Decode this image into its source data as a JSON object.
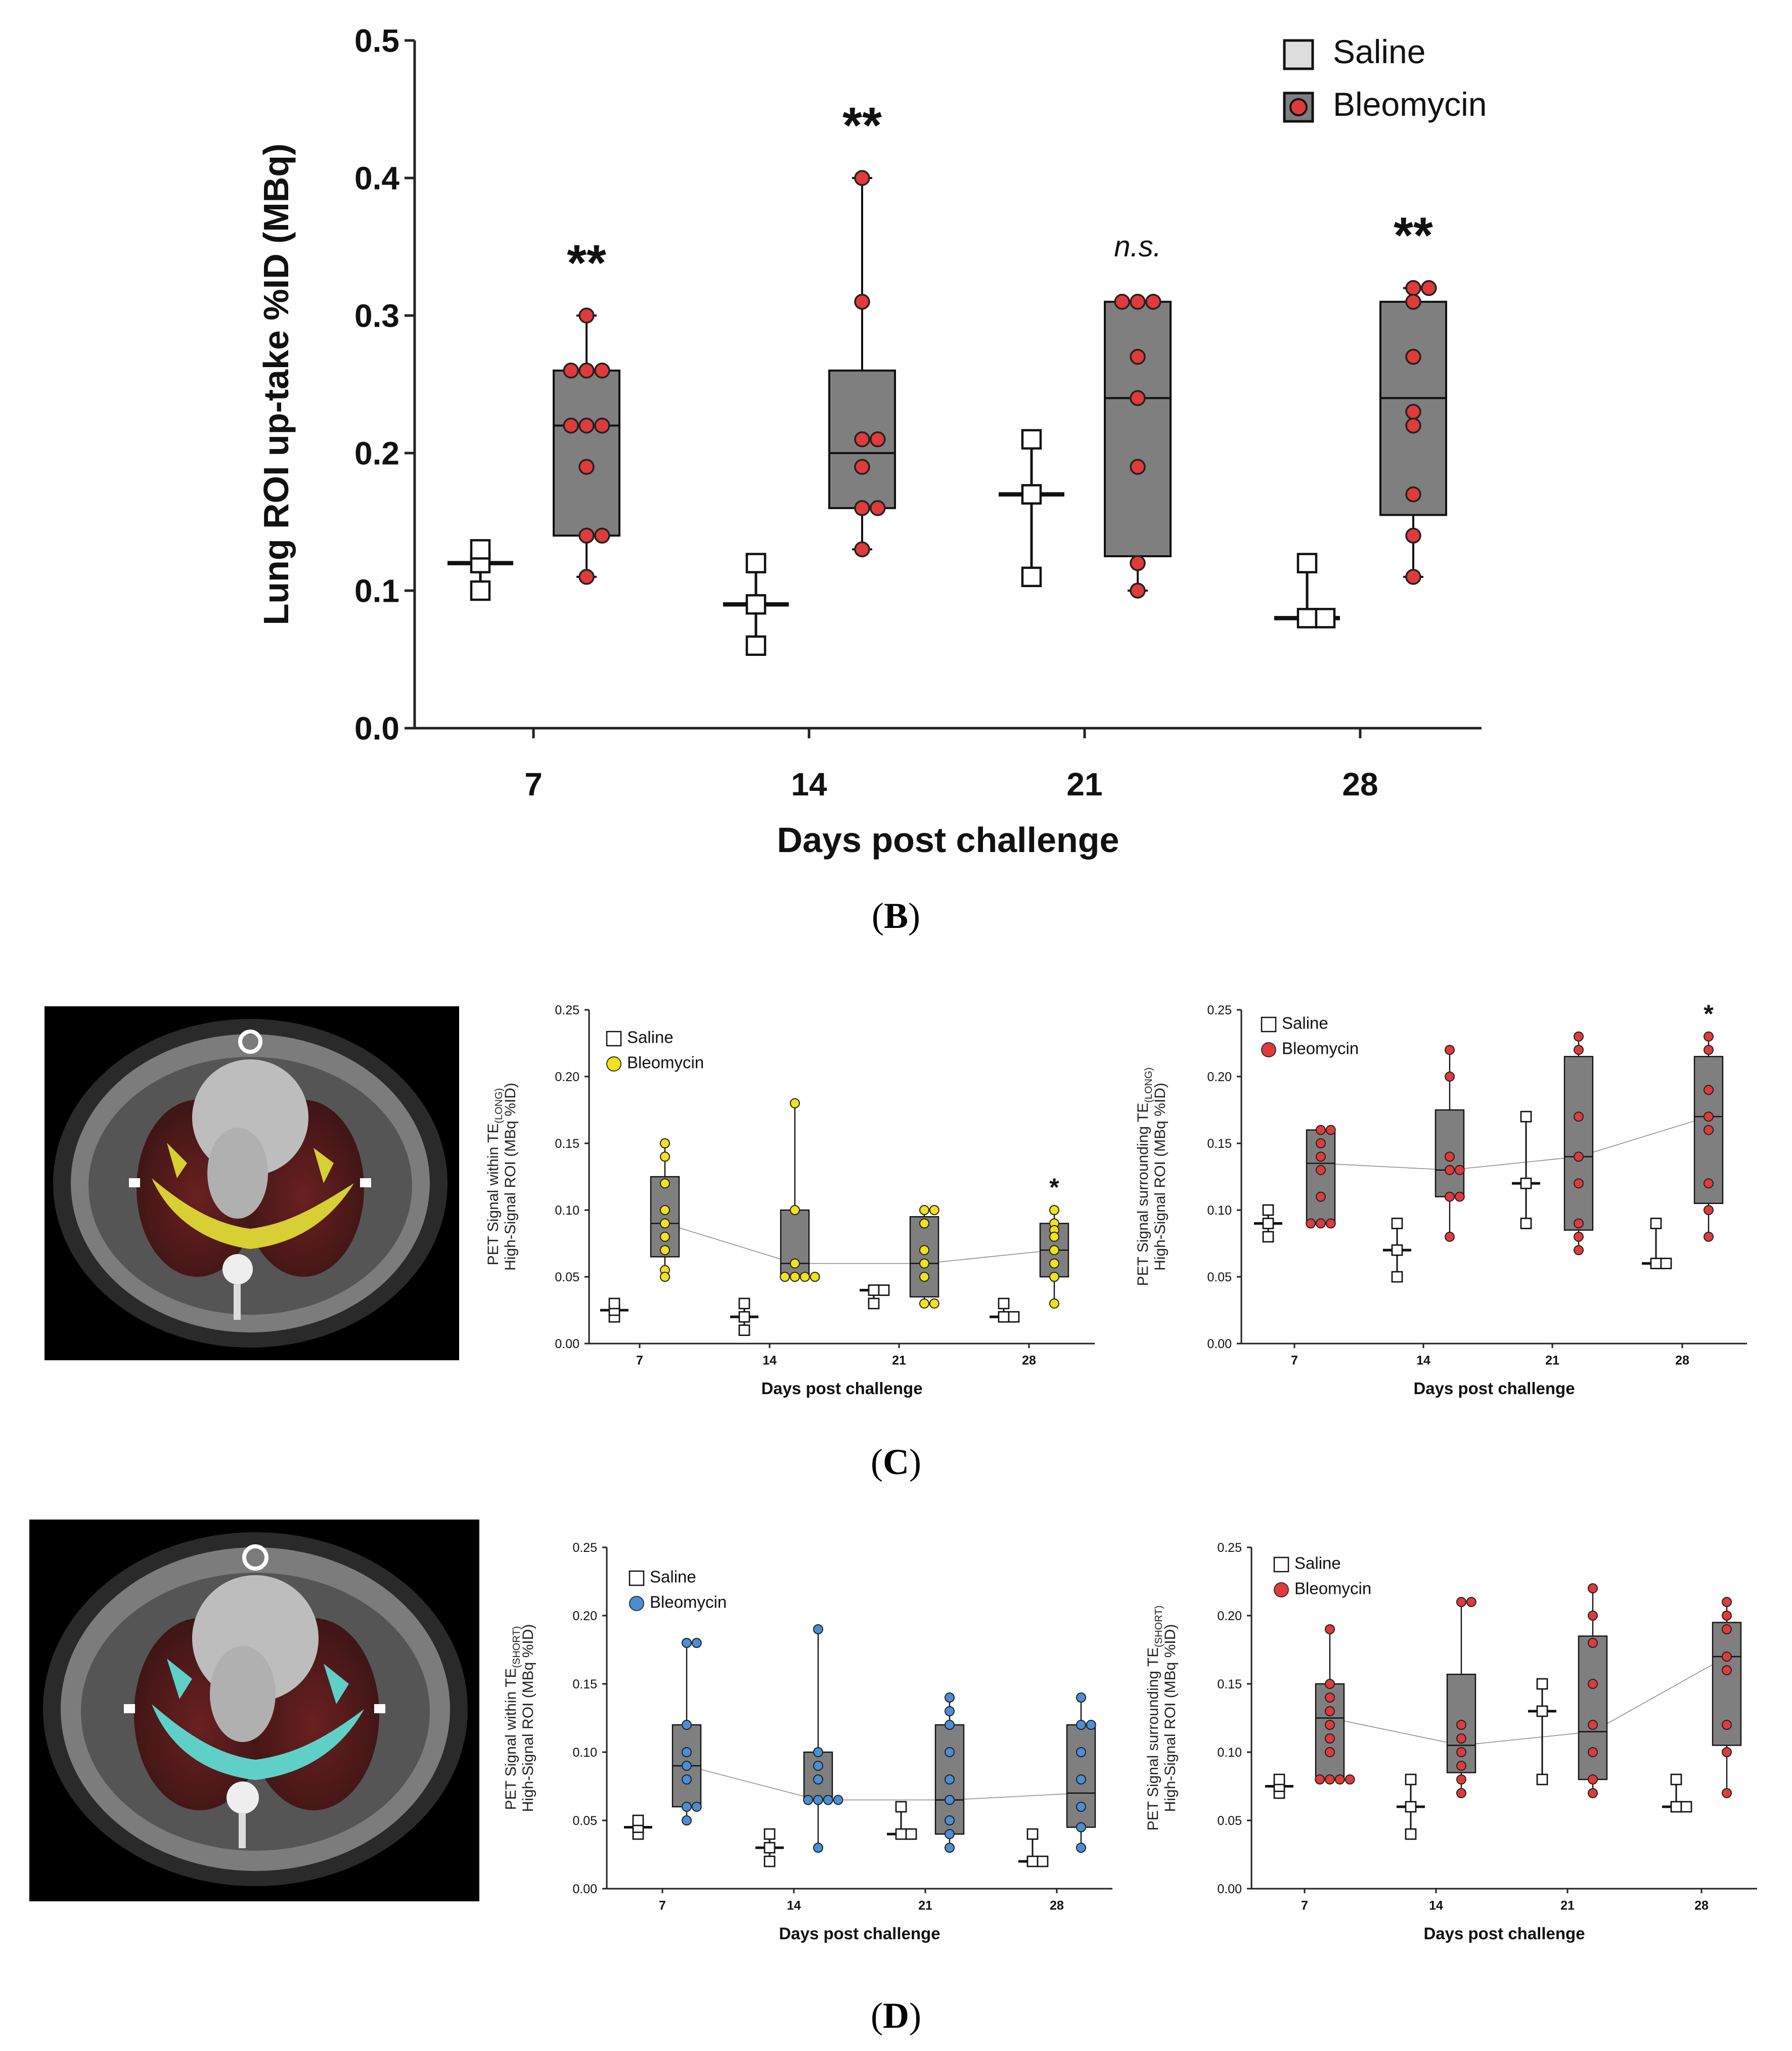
{
  "panel_labels": {
    "B": {
      "open": "(",
      "letter": "B",
      "close": ")"
    },
    "C": {
      "open": "(",
      "letter": "C",
      "close": ")"
    },
    "D": {
      "open": "(",
      "letter": "D",
      "close": ")"
    }
  },
  "images": {
    "ct_long": "CT axial thorax slice with yellow TE(LONG) high-signal overlay",
    "ct_short": "CT axial thorax slice with cyan TE(SHORT) high-signal overlay"
  },
  "chart_data": [
    {
      "id": "B",
      "type": "box",
      "title": "",
      "xlabel": "Days post challenge",
      "ylabel": "Lung ROI up-take %ID (MBq)",
      "categories": [
        "7",
        "14",
        "21",
        "28"
      ],
      "ylim": [
        0,
        0.5
      ],
      "yticks": [
        "0.0",
        "0.1",
        "0.2",
        "0.3",
        "0.4",
        "0.5"
      ],
      "legend": [
        {
          "label": "Saline",
          "color": "#dddddd"
        },
        {
          "label": "Bleomycin",
          "color": "#e03a3a"
        }
      ],
      "colors": {
        "box": "#7f7f7f",
        "point": "#e03a3a"
      },
      "trend_line": false,
      "significance": [
        "**",
        "**",
        "n.s.",
        "**"
      ],
      "series": [
        {
          "name": "Saline",
          "groups": [
            {
              "min": 0.1,
              "q1": 0.12,
              "median": 0.12,
              "q3": 0.12,
              "max": 0.13,
              "points": [
                0.1,
                0.12,
                0.13
              ]
            },
            {
              "min": 0.06,
              "q1": 0.09,
              "median": 0.09,
              "q3": 0.09,
              "max": 0.12,
              "points": [
                0.06,
                0.09,
                0.12
              ]
            },
            {
              "min": 0.11,
              "q1": 0.17,
              "median": 0.17,
              "q3": 0.17,
              "max": 0.21,
              "points": [
                0.11,
                0.17,
                0.21
              ]
            },
            {
              "min": 0.08,
              "q1": 0.08,
              "median": 0.08,
              "q3": 0.08,
              "max": 0.12,
              "points": [
                0.08,
                0.08,
                0.12
              ]
            }
          ]
        },
        {
          "name": "Bleomycin",
          "groups": [
            {
              "min": 0.11,
              "q1": 0.14,
              "median": 0.22,
              "q3": 0.26,
              "max": 0.3,
              "points": [
                0.3,
                0.26,
                0.26,
                0.26,
                0.22,
                0.22,
                0.22,
                0.19,
                0.14,
                0.14,
                0.11
              ]
            },
            {
              "min": 0.13,
              "q1": 0.16,
              "median": 0.2,
              "q3": 0.26,
              "max": 0.4,
              "points": [
                0.4,
                0.31,
                0.21,
                0.21,
                0.19,
                0.16,
                0.16,
                0.13
              ]
            },
            {
              "min": 0.1,
              "q1": 0.125,
              "median": 0.24,
              "q3": 0.31,
              "max": 0.31,
              "points": [
                0.31,
                0.31,
                0.31,
                0.27,
                0.24,
                0.19,
                0.12,
                0.1
              ]
            },
            {
              "min": 0.11,
              "q1": 0.155,
              "median": 0.24,
              "q3": 0.31,
              "max": 0.32,
              "points": [
                0.32,
                0.32,
                0.31,
                0.27,
                0.23,
                0.22,
                0.17,
                0.14,
                0.11
              ]
            }
          ]
        }
      ]
    },
    {
      "id": "C-left",
      "type": "box",
      "title": "",
      "xlabel": "Days post challenge",
      "ylabel_parts": [
        "PET Signal within TE",
        "(LONG)",
        "High-Signal ROI (MBq %ID)"
      ],
      "categories": [
        "7",
        "14",
        "21",
        "28"
      ],
      "ylim": [
        0,
        0.25
      ],
      "yticks": [
        "0.00",
        "0.05",
        "0.10",
        "0.15",
        "0.20",
        "0.25"
      ],
      "legend": [
        {
          "label": "Saline",
          "color": "#ffffff"
        },
        {
          "label": "Bleomycin",
          "color": "#f2e21b"
        }
      ],
      "colors": {
        "box": "#7f7f7f",
        "point": "#f2e21b"
      },
      "trend_line": true,
      "significance": [
        "",
        "",
        "",
        "*"
      ],
      "series": [
        {
          "name": "Saline",
          "groups": [
            {
              "min": 0.02,
              "q1": 0.025,
              "median": 0.025,
              "q3": 0.025,
              "max": 0.03,
              "points": [
                0.02,
                0.025,
                0.03
              ]
            },
            {
              "min": 0.01,
              "q1": 0.02,
              "median": 0.02,
              "q3": 0.02,
              "max": 0.03,
              "points": [
                0.01,
                0.02,
                0.03
              ]
            },
            {
              "min": 0.03,
              "q1": 0.04,
              "median": 0.04,
              "q3": 0.04,
              "max": 0.04,
              "points": [
                0.03,
                0.04,
                0.04
              ]
            },
            {
              "min": 0.02,
              "q1": 0.02,
              "median": 0.02,
              "q3": 0.02,
              "max": 0.03,
              "points": [
                0.02,
                0.02,
                0.03
              ]
            }
          ]
        },
        {
          "name": "Bleomycin",
          "groups": [
            {
              "min": 0.05,
              "q1": 0.065,
              "median": 0.09,
              "q3": 0.125,
              "max": 0.15,
              "points": [
                0.15,
                0.14,
                0.12,
                0.1,
                0.09,
                0.08,
                0.07,
                0.055,
                0.05
              ]
            },
            {
              "min": 0.05,
              "q1": 0.05,
              "median": 0.06,
              "q3": 0.1,
              "max": 0.18,
              "points": [
                0.18,
                0.1,
                0.06,
                0.05,
                0.05,
                0.05,
                0.05
              ]
            },
            {
              "min": 0.03,
              "q1": 0.035,
              "median": 0.06,
              "q3": 0.095,
              "max": 0.1,
              "points": [
                0.1,
                0.1,
                0.09,
                0.07,
                0.06,
                0.05,
                0.03,
                0.03
              ]
            },
            {
              "min": 0.03,
              "q1": 0.05,
              "median": 0.07,
              "q3": 0.09,
              "max": 0.1,
              "points": [
                0.1,
                0.09,
                0.085,
                0.08,
                0.07,
                0.06,
                0.05,
                0.03
              ]
            }
          ]
        }
      ]
    },
    {
      "id": "C-right",
      "type": "box",
      "title": "",
      "xlabel": "Days post challenge",
      "ylabel_parts": [
        "PET Signal surrounding TE",
        "(LONG)",
        "High-Signal ROI (MBq %ID)"
      ],
      "categories": [
        "7",
        "14",
        "21",
        "28"
      ],
      "ylim": [
        0,
        0.25
      ],
      "yticks": [
        "0.00",
        "0.05",
        "0.10",
        "0.15",
        "0.20",
        "0.25"
      ],
      "legend": [
        {
          "label": "Saline",
          "color": "#ffffff"
        },
        {
          "label": "Bleomycin",
          "color": "#e03a3a"
        }
      ],
      "colors": {
        "box": "#7f7f7f",
        "point": "#e03a3a"
      },
      "trend_line": true,
      "significance": [
        "",
        "",
        "",
        "*"
      ],
      "series": [
        {
          "name": "Saline",
          "groups": [
            {
              "min": 0.08,
              "q1": 0.09,
              "median": 0.09,
              "q3": 0.09,
              "max": 0.1,
              "points": [
                0.08,
                0.09,
                0.1
              ]
            },
            {
              "min": 0.05,
              "q1": 0.07,
              "median": 0.07,
              "q3": 0.07,
              "max": 0.09,
              "points": [
                0.05,
                0.07,
                0.09
              ]
            },
            {
              "min": 0.09,
              "q1": 0.12,
              "median": 0.12,
              "q3": 0.12,
              "max": 0.17,
              "points": [
                0.09,
                0.12,
                0.17
              ]
            },
            {
              "min": 0.06,
              "q1": 0.06,
              "median": 0.06,
              "q3": 0.06,
              "max": 0.09,
              "points": [
                0.06,
                0.06,
                0.09
              ]
            }
          ]
        },
        {
          "name": "Bleomycin",
          "groups": [
            {
              "min": 0.09,
              "q1": 0.09,
              "median": 0.135,
              "q3": 0.16,
              "max": 0.16,
              "points": [
                0.16,
                0.16,
                0.15,
                0.14,
                0.13,
                0.11,
                0.09,
                0.09,
                0.09
              ]
            },
            {
              "min": 0.08,
              "q1": 0.11,
              "median": 0.13,
              "q3": 0.175,
              "max": 0.22,
              "points": [
                0.22,
                0.2,
                0.14,
                0.13,
                0.13,
                0.11,
                0.11,
                0.08
              ]
            },
            {
              "min": 0.07,
              "q1": 0.085,
              "median": 0.14,
              "q3": 0.215,
              "max": 0.23,
              "points": [
                0.23,
                0.22,
                0.17,
                0.14,
                0.12,
                0.09,
                0.08,
                0.07
              ]
            },
            {
              "min": 0.08,
              "q1": 0.105,
              "median": 0.17,
              "q3": 0.215,
              "max": 0.23,
              "points": [
                0.23,
                0.22,
                0.19,
                0.17,
                0.16,
                0.12,
                0.1,
                0.08
              ]
            }
          ]
        }
      ]
    },
    {
      "id": "D-left",
      "type": "box",
      "title": "",
      "xlabel": "Days post challenge",
      "ylabel_parts": [
        "PET Signal within TE",
        "(SHORT)",
        "High-Signal ROI (MBq %ID)"
      ],
      "categories": [
        "7",
        "14",
        "21",
        "28"
      ],
      "ylim": [
        0,
        0.25
      ],
      "yticks": [
        "0.00",
        "0.05",
        "0.10",
        "0.15",
        "0.20",
        "0.25"
      ],
      "legend": [
        {
          "label": "Saline",
          "color": "#ffffff"
        },
        {
          "label": "Bleomycin",
          "color": "#4a8fd6"
        }
      ],
      "colors": {
        "box": "#7f7f7f",
        "point": "#4a8fd6"
      },
      "trend_line": true,
      "significance": [
        "",
        "",
        "",
        ""
      ],
      "series": [
        {
          "name": "Saline",
          "groups": [
            {
              "min": 0.04,
              "q1": 0.045,
              "median": 0.045,
              "q3": 0.045,
              "max": 0.05,
              "points": [
                0.04,
                0.045,
                0.05
              ]
            },
            {
              "min": 0.02,
              "q1": 0.03,
              "median": 0.03,
              "q3": 0.03,
              "max": 0.04,
              "points": [
                0.02,
                0.03,
                0.04
              ]
            },
            {
              "min": 0.04,
              "q1": 0.04,
              "median": 0.04,
              "q3": 0.04,
              "max": 0.06,
              "points": [
                0.04,
                0.04,
                0.06
              ]
            },
            {
              "min": 0.02,
              "q1": 0.02,
              "median": 0.02,
              "q3": 0.02,
              "max": 0.04,
              "points": [
                0.02,
                0.02,
                0.04
              ]
            }
          ]
        },
        {
          "name": "Bleomycin",
          "groups": [
            {
              "min": 0.05,
              "q1": 0.06,
              "median": 0.09,
              "q3": 0.12,
              "max": 0.18,
              "points": [
                0.18,
                0.18,
                0.12,
                0.1,
                0.09,
                0.08,
                0.06,
                0.06,
                0.05
              ]
            },
            {
              "min": 0.03,
              "q1": 0.065,
              "median": 0.065,
              "q3": 0.1,
              "max": 0.19,
              "points": [
                0.19,
                0.1,
                0.09,
                0.08,
                0.065,
                0.065,
                0.065,
                0.065,
                0.03
              ]
            },
            {
              "min": 0.03,
              "q1": 0.04,
              "median": 0.065,
              "q3": 0.12,
              "max": 0.14,
              "points": [
                0.14,
                0.13,
                0.12,
                0.1,
                0.08,
                0.065,
                0.05,
                0.04,
                0.03
              ]
            },
            {
              "min": 0.03,
              "q1": 0.045,
              "median": 0.07,
              "q3": 0.12,
              "max": 0.14,
              "points": [
                0.14,
                0.12,
                0.12,
                0.1,
                0.08,
                0.06,
                0.045,
                0.03
              ]
            }
          ]
        }
      ]
    },
    {
      "id": "D-right",
      "type": "box",
      "title": "",
      "xlabel": "Days post challenge",
      "ylabel_parts": [
        "PET Signal surrounding TE",
        "(SHORT)",
        "High-Signal ROI (MBq %ID)"
      ],
      "categories": [
        "7",
        "14",
        "21",
        "28"
      ],
      "ylim": [
        0,
        0.25
      ],
      "yticks": [
        "0.00",
        "0.05",
        "0.10",
        "0.15",
        "0.20",
        "0.25"
      ],
      "legend": [
        {
          "label": "Saline",
          "color": "#ffffff"
        },
        {
          "label": "Bleomycin",
          "color": "#e03a3a"
        }
      ],
      "colors": {
        "box": "#7f7f7f",
        "point": "#e03a3a"
      },
      "trend_line": true,
      "significance": [
        "",
        "",
        "",
        ""
      ],
      "series": [
        {
          "name": "Saline",
          "groups": [
            {
              "min": 0.07,
              "q1": 0.075,
              "median": 0.075,
              "q3": 0.075,
              "max": 0.08,
              "points": [
                0.07,
                0.075,
                0.08
              ]
            },
            {
              "min": 0.04,
              "q1": 0.06,
              "median": 0.06,
              "q3": 0.06,
              "max": 0.08,
              "points": [
                0.04,
                0.06,
                0.08
              ]
            },
            {
              "min": 0.08,
              "q1": 0.13,
              "median": 0.13,
              "q3": 0.13,
              "max": 0.15,
              "points": [
                0.08,
                0.13,
                0.15
              ]
            },
            {
              "min": 0.06,
              "q1": 0.06,
              "median": 0.06,
              "q3": 0.06,
              "max": 0.08,
              "points": [
                0.06,
                0.06,
                0.08
              ]
            }
          ]
        },
        {
          "name": "Bleomycin",
          "groups": [
            {
              "min": 0.08,
              "q1": 0.08,
              "median": 0.125,
              "q3": 0.15,
              "max": 0.19,
              "points": [
                0.19,
                0.15,
                0.14,
                0.13,
                0.12,
                0.11,
                0.1,
                0.08,
                0.08,
                0.08,
                0.08
              ]
            },
            {
              "min": 0.07,
              "q1": 0.085,
              "median": 0.105,
              "q3": 0.157,
              "max": 0.21,
              "points": [
                0.21,
                0.21,
                0.12,
                0.11,
                0.1,
                0.09,
                0.08,
                0.07
              ]
            },
            {
              "min": 0.07,
              "q1": 0.08,
              "median": 0.115,
              "q3": 0.185,
              "max": 0.22,
              "points": [
                0.22,
                0.2,
                0.18,
                0.15,
                0.12,
                0.1,
                0.08,
                0.07
              ]
            },
            {
              "min": 0.07,
              "q1": 0.105,
              "median": 0.17,
              "q3": 0.195,
              "max": 0.21,
              "points": [
                0.21,
                0.2,
                0.19,
                0.17,
                0.16,
                0.12,
                0.1,
                0.07
              ]
            }
          ]
        }
      ]
    }
  ]
}
